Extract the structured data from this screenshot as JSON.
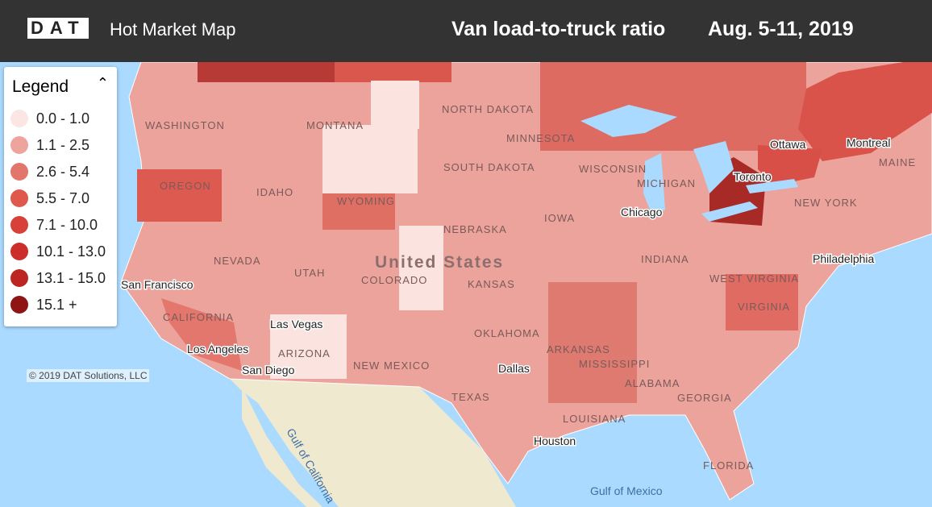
{
  "header": {
    "logo": "DAT",
    "app_title": "Hot Market Map",
    "metric": "Van load-to-truck ratio",
    "date_range": "Aug. 5-11, 2019"
  },
  "legend": {
    "title": "Legend",
    "items": [
      {
        "label": "0.0 - 1.0",
        "color": "#fbe6e3"
      },
      {
        "label": "1.1 - 2.5",
        "color": "#eda49c"
      },
      {
        "label": "2.6 - 5.4",
        "color": "#e2766b"
      },
      {
        "label": "5.5 - 7.0",
        "color": "#e0574c"
      },
      {
        "label": "7.1 - 10.0",
        "color": "#d8403a"
      },
      {
        "label": "10.1 - 13.0",
        "color": "#cc2f2b"
      },
      {
        "label": "13.1 - 15.0",
        "color": "#bd2522"
      },
      {
        "label": "15.1 +",
        "color": "#8f1515"
      }
    ]
  },
  "map": {
    "labels": [
      "WASHINGTON",
      "OREGON",
      "IDAHO",
      "MONTANA",
      "WYOMING",
      "NORTH DAKOTA",
      "SOUTH DAKOTA",
      "NEBRASKA",
      "KANSAS",
      "NEVADA",
      "UTAH",
      "COLORADO",
      "CALIFORNIA",
      "ARIZONA",
      "NEW MEXICO",
      "TEXAS",
      "OKLAHOMA",
      "MINNESOTA",
      "WISCONSIN",
      "MICHIGAN",
      "IOWA",
      "INDIANA",
      "ARKANSAS",
      "MISSISSIPPI",
      "ALABAMA",
      "GEORGIA",
      "LOUISIANA",
      "FLORIDA",
      "MAINE",
      "NEW YORK",
      "WEST VIRGINIA",
      "VIRGINIA",
      "United States",
      "San Francisco",
      "Las Vegas",
      "Los Angeles",
      "San Diego",
      "Dallas",
      "Houston",
      "Chicago",
      "Toronto",
      "Ottawa",
      "Montreal",
      "Philadelphia",
      "Gulf of California",
      "Gulf of Mexico"
    ],
    "copyright": "© 2019 DAT Solutions, LLC"
  }
}
